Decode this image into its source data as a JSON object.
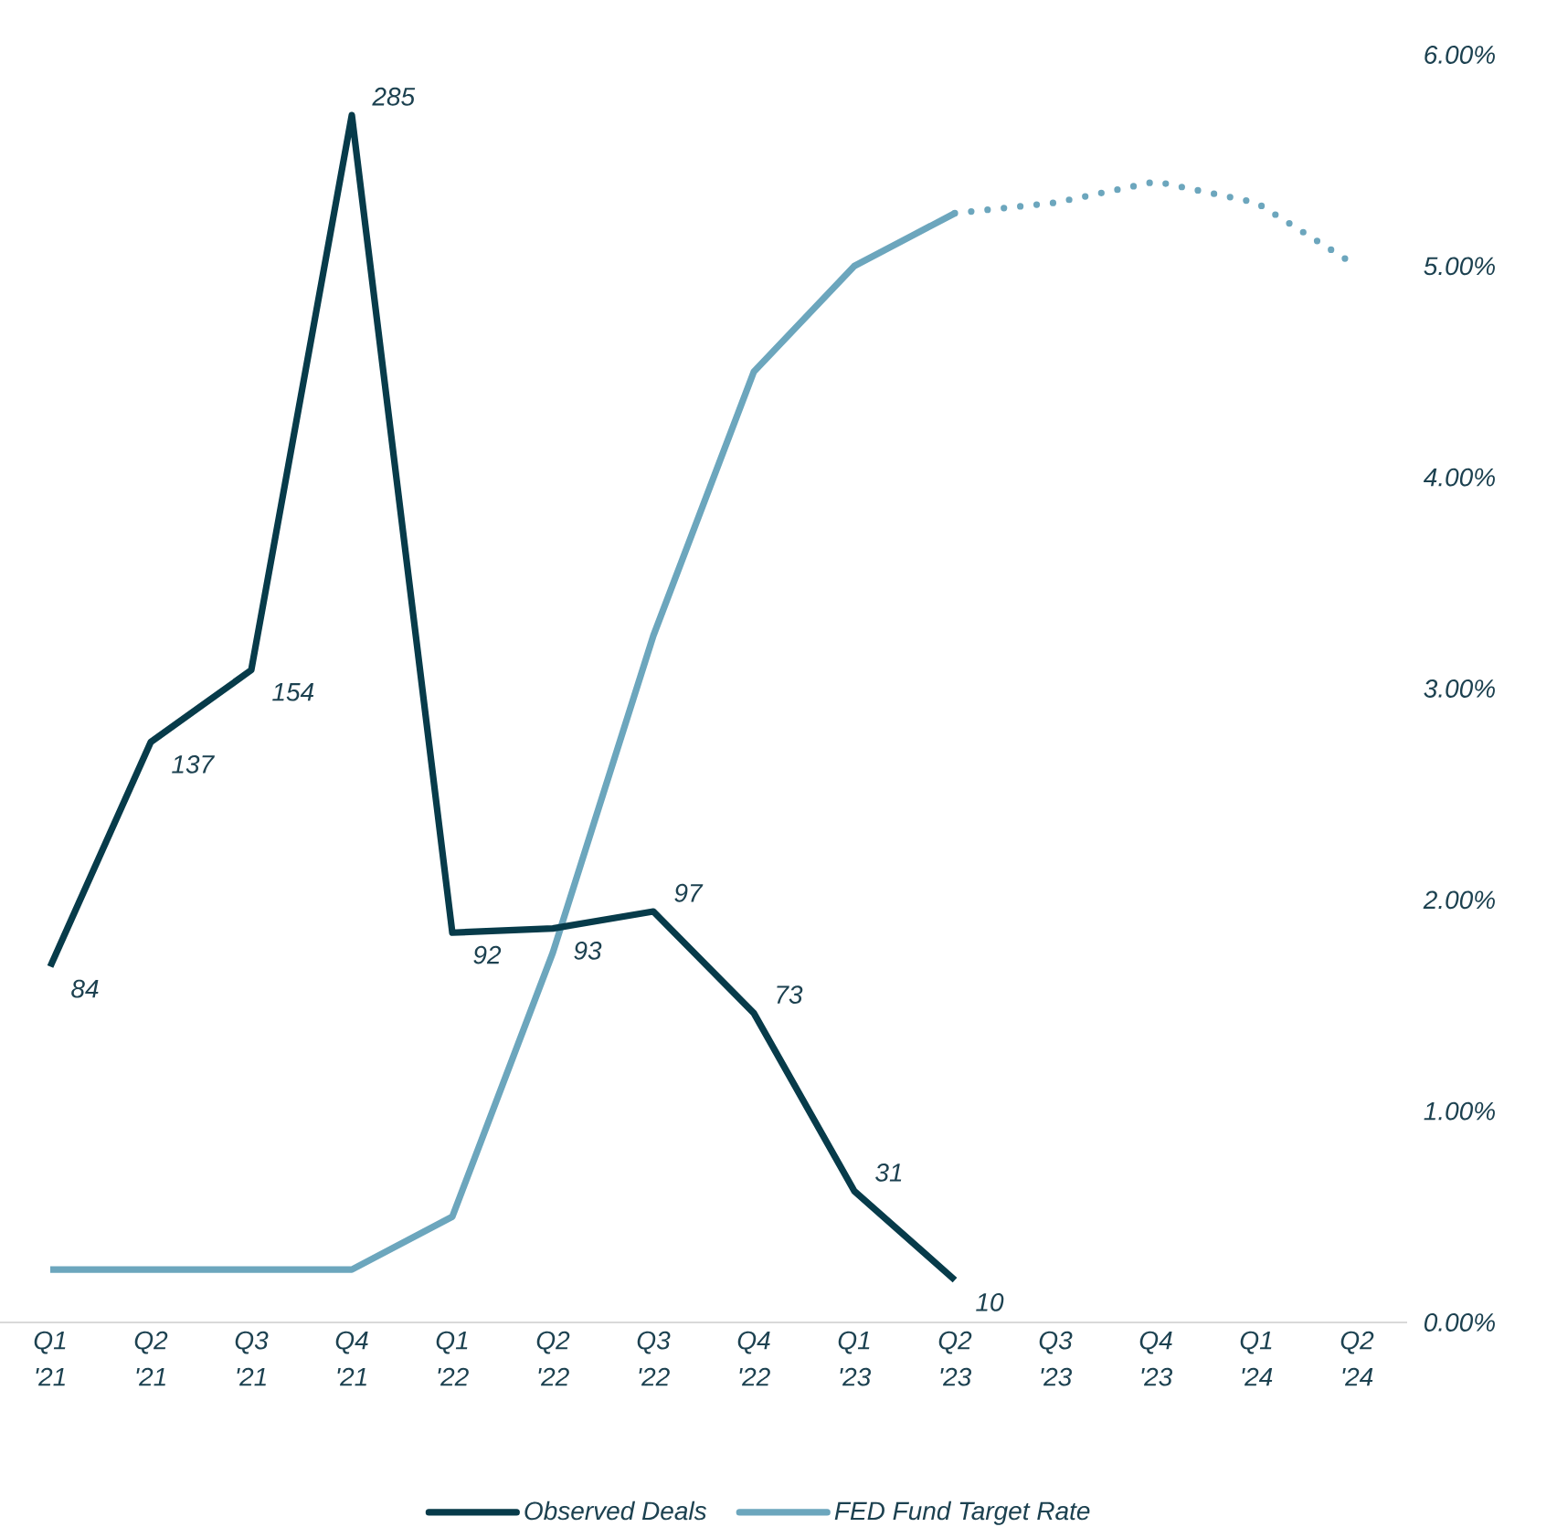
{
  "chart_data": {
    "type": "line",
    "categories": [
      "Q1 '21",
      "Q2 '21",
      "Q3 '21",
      "Q4 '21",
      "Q1 '22",
      "Q2 '22",
      "Q3 '22",
      "Q4 '22",
      "Q1 '23",
      "Q2 '23",
      "Q3 '23",
      "Q4 '23",
      "Q1 '24",
      "Q2 '24"
    ],
    "series": [
      {
        "name": "Observed Deals",
        "color": "#073b4a",
        "axis": "y2",
        "values": [
          84,
          137,
          154,
          285,
          92,
          93,
          97,
          73,
          31,
          10,
          null,
          null,
          null,
          null
        ],
        "value_labels": [
          "84",
          "137",
          "154",
          "285",
          "92",
          "93",
          "97",
          "73",
          "31",
          "10",
          null,
          null,
          null,
          null
        ]
      },
      {
        "name": "FED Fund Target Rate",
        "color": "#6ca6bd",
        "values": [
          0.25,
          0.25,
          0.25,
          0.25,
          0.5,
          1.75,
          3.25,
          4.5,
          5.0,
          5.25,
          null,
          null,
          null,
          null
        ]
      },
      {
        "color": "#6ca6bd",
        "line_style": "dotted",
        "values": [
          null,
          null,
          null,
          null,
          null,
          null,
          null,
          null,
          null,
          5.25,
          5.3,
          5.4,
          5.3,
          5.0
        ]
      }
    ],
    "ylim": [
      0,
      6
    ],
    "yticks": [
      {
        "value": 0,
        "label": "0.00%"
      },
      {
        "value": 1,
        "label": "1.00%"
      },
      {
        "value": 2,
        "label": "2.00%"
      },
      {
        "value": 3,
        "label": "3.00%"
      },
      {
        "value": 4,
        "label": "4.00%"
      },
      {
        "value": 5,
        "label": "5.00%"
      },
      {
        "value": 6,
        "label": "6.00%"
      }
    ],
    "legend": "bottom",
    "marker": "none",
    "grid": false
  }
}
